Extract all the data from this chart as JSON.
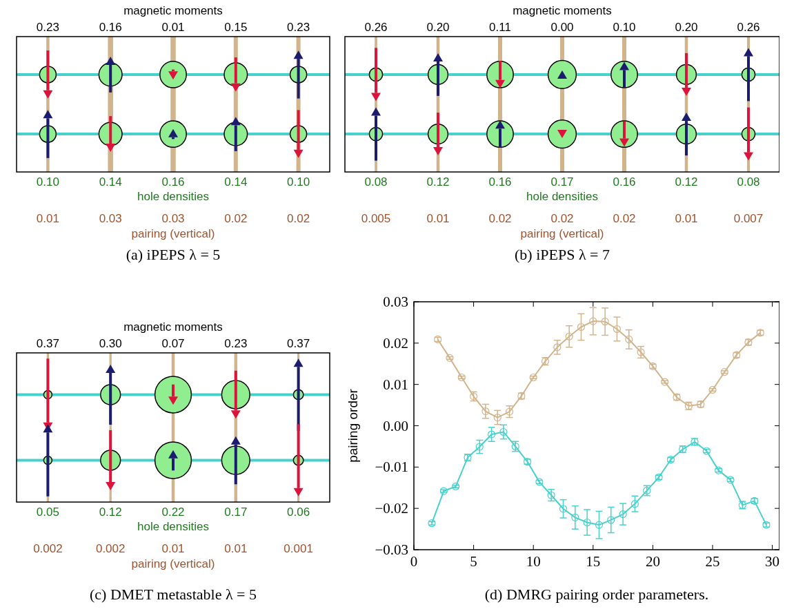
{
  "chart_data": [
    {
      "type": "other",
      "title": "(a) iPEPS λ = 5",
      "categories": [
        null,
        null,
        null,
        null,
        null
      ],
      "annotations": [
        "magnetic moments",
        "0.23",
        "0.16",
        "0.01",
        "0.15",
        "0.23",
        "hole densities",
        "0.10",
        "0.14",
        "0.16",
        "0.14",
        "0.10",
        "pairing (vertical)",
        "0.01",
        "0.03",
        "0.03",
        "0.02",
        "0.02"
      ]
    },
    {
      "type": "other",
      "title": "(b) iPEPS λ = 7",
      "categories": [
        null,
        null,
        null,
        null,
        null,
        null,
        null
      ],
      "annotations": [
        "magnetic moments",
        "0.26",
        "0.20",
        "0.11",
        "0.00",
        "0.10",
        "0.20",
        "0.26",
        "hole densities",
        "0.08",
        "0.12",
        "0.16",
        "0.17",
        "0.16",
        "0.12",
        "0.08",
        "pairing (vertical)",
        "0.005",
        "0.01",
        "0.02",
        "0.02",
        "0.02",
        "0.01",
        "0.007"
      ]
    },
    {
      "type": "other",
      "title": "(c) DMET metastable λ = 5",
      "categories": [
        null,
        null,
        null,
        null,
        null
      ],
      "annotations": [
        "magnetic moments",
        "0.37",
        "0.30",
        "0.07",
        "0.23",
        "0.37",
        "hole densities",
        "0.05",
        "0.12",
        "0.22",
        "0.17",
        "0.06",
        "pairing (vertical)",
        "0.002",
        "0.002",
        "0.01",
        "0.01",
        "0.001"
      ]
    },
    {
      "type": "line",
      "title": "(d) DMRG pairing order parameters.",
      "ylabel": "pairing order",
      "marker": "circle",
      "xlim": [
        0,
        30.6
      ],
      "xticks": [
        0,
        5,
        10,
        15,
        20,
        25,
        30
      ],
      "ylim": [
        -0.03,
        0.03
      ],
      "yticks": [
        {
          "value": -0.03,
          "label": "−0.03"
        },
        {
          "value": -0.02,
          "label": "−0.02"
        },
        {
          "value": -0.01,
          "label": "−0.01"
        },
        {
          "value": 0,
          "label": "0.00"
        },
        {
          "value": 0.01,
          "label": "0.01"
        },
        {
          "value": 0.02,
          "label": "0.02"
        },
        {
          "value": 0.03,
          "label": "0.03"
        }
      ],
      "series": [
        {
          "color": "#d2b48c",
          "x": [
            2,
            3,
            4,
            5,
            6,
            7,
            8,
            9,
            10,
            11,
            12,
            13,
            14,
            15,
            16,
            17,
            18,
            19,
            20,
            21,
            22,
            23,
            24,
            25,
            26,
            27,
            28,
            29
          ],
          "values": [
            0.0209,
            0.0164,
            0.0117,
            0.0071,
            0.0035,
            0.002,
            0.0034,
            0.0072,
            0.0117,
            0.0156,
            0.019,
            0.0216,
            0.0239,
            0.0253,
            0.0252,
            0.0234,
            0.0209,
            0.0178,
            0.0144,
            0.0106,
            0.0069,
            0.0048,
            0.0052,
            0.0087,
            0.013,
            0.0171,
            0.0202,
            0.0225
          ],
          "errors": [
            0.0005,
            0.0003,
            0.0003,
            0.0011,
            0.0017,
            0.0017,
            0.0014,
            0.0007,
            0.0003,
            0.0009,
            0.0017,
            0.0026,
            0.0032,
            0.0033,
            0.0033,
            0.0029,
            0.0023,
            0.0014,
            0.0005,
            0.0003,
            0.0007,
            0.0009,
            0.0007,
            0.0003,
            0.0003,
            0.0006,
            0.0007,
            0.0006
          ]
        },
        {
          "color": "#48d1cc",
          "x": [
            1.5,
            2.5,
            3.5,
            4.5,
            5.5,
            6.5,
            7.5,
            8.5,
            9.5,
            10.5,
            11.5,
            12.5,
            13.5,
            14.5,
            15.5,
            16.5,
            17.5,
            18.5,
            19.5,
            20.5,
            21.5,
            22.5,
            23.5,
            24.5,
            25.5,
            26.5,
            27.5,
            28.5,
            29.5
          ],
          "values": [
            -0.0236,
            -0.0158,
            -0.0147,
            -0.0077,
            -0.0051,
            -0.0021,
            -0.0015,
            -0.005,
            -0.0087,
            -0.0136,
            -0.0168,
            -0.0201,
            -0.0222,
            -0.0234,
            -0.024,
            -0.0228,
            -0.0214,
            -0.0189,
            -0.0157,
            -0.0125,
            -0.0082,
            -0.0057,
            -0.0039,
            -0.0061,
            -0.0108,
            -0.0131,
            -0.0192,
            -0.0182,
            -0.024
          ],
          "errors": [
            0.0004,
            0.0003,
            0.0003,
            0.0008,
            0.0016,
            0.0017,
            0.0017,
            0.0012,
            0.0006,
            0.0004,
            0.0014,
            0.0022,
            0.0028,
            0.0031,
            0.0033,
            0.0031,
            0.0026,
            0.0019,
            0.0012,
            0.0005,
            0.0005,
            0.0008,
            0.0008,
            0.0004,
            0.0004,
            0.0004,
            0.0009,
            0.0006,
            0.0005
          ]
        }
      ]
    }
  ]
}
